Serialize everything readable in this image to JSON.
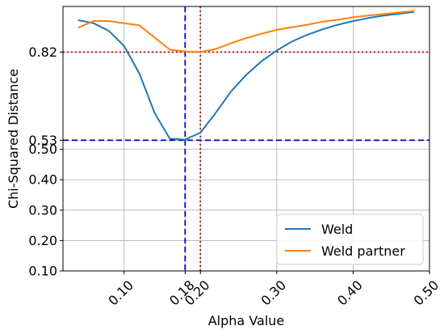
{
  "chart_data": {
    "type": "line",
    "xlabel": "Alpha Value",
    "ylabel": "Chi-Squared Distance",
    "xlim": [
      0.02,
      0.5
    ],
    "ylim": [
      0.1,
      0.97
    ],
    "x_ticks": [
      {
        "value": 0.1,
        "label": "0.10"
      },
      {
        "value": 0.18,
        "label": "0.18"
      },
      {
        "value": 0.2,
        "label": "0.20"
      },
      {
        "value": 0.3,
        "label": "0.30"
      },
      {
        "value": 0.4,
        "label": "0.40"
      },
      {
        "value": 0.5,
        "label": "0.50"
      }
    ],
    "y_ticks": [
      {
        "value": 0.1,
        "label": "0.10"
      },
      {
        "value": 0.2,
        "label": "0.20"
      },
      {
        "value": 0.3,
        "label": "0.30"
      },
      {
        "value": 0.4,
        "label": "0.40"
      },
      {
        "value": 0.5,
        "label": "0.50"
      },
      {
        "value": 0.53,
        "label": "0.53"
      },
      {
        "value": 0.82,
        "label": "0.82"
      }
    ],
    "grid": true,
    "legend_position": "lower-right",
    "series": [
      {
        "name": "Weld",
        "color": "#1f77b4",
        "x": [
          0.04,
          0.06,
          0.08,
          0.1,
          0.12,
          0.14,
          0.16,
          0.18,
          0.2,
          0.22,
          0.24,
          0.26,
          0.28,
          0.3,
          0.32,
          0.34,
          0.36,
          0.38,
          0.4,
          0.42,
          0.44,
          0.46,
          0.48
        ],
        "y": [
          0.925,
          0.915,
          0.89,
          0.84,
          0.75,
          0.62,
          0.535,
          0.532,
          0.555,
          0.62,
          0.69,
          0.745,
          0.79,
          0.825,
          0.855,
          0.877,
          0.895,
          0.91,
          0.922,
          0.932,
          0.94,
          0.946,
          0.952
        ]
      },
      {
        "name": "Weld partner",
        "color": "#ff7f0e",
        "x": [
          0.04,
          0.06,
          0.08,
          0.1,
          0.12,
          0.14,
          0.16,
          0.18,
          0.2,
          0.22,
          0.24,
          0.26,
          0.28,
          0.3,
          0.32,
          0.34,
          0.36,
          0.38,
          0.4,
          0.42,
          0.44,
          0.46,
          0.48
        ],
        "y": [
          0.9,
          0.922,
          0.922,
          0.915,
          0.908,
          0.868,
          0.828,
          0.822,
          0.82,
          0.83,
          0.849,
          0.866,
          0.88,
          0.893,
          0.902,
          0.91,
          0.92,
          0.926,
          0.935,
          0.94,
          0.945,
          0.95,
          0.955
        ]
      }
    ],
    "reference_lines": [
      {
        "orientation": "vertical",
        "value": 0.18,
        "color": "#0000cc",
        "style": "dashed"
      },
      {
        "orientation": "horizontal",
        "value": 0.53,
        "color": "#0000cc",
        "style": "dashed"
      },
      {
        "orientation": "vertical",
        "value": 0.2,
        "color": "#cc0000",
        "style": "dotted"
      },
      {
        "orientation": "horizontal",
        "value": 0.82,
        "color": "#cc0000",
        "style": "dotted"
      }
    ]
  }
}
